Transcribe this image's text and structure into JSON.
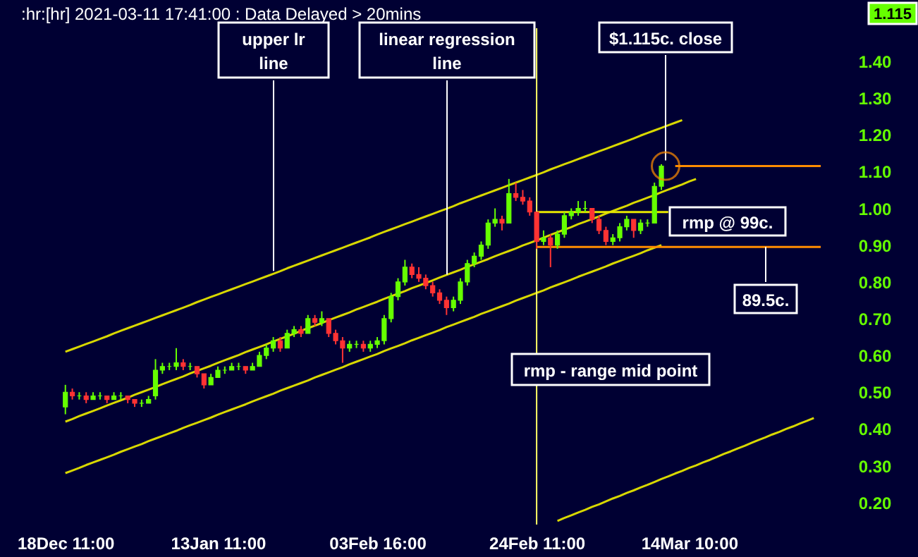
{
  "chart_data": {
    "type": "candlestick",
    "title": ":hr:[hr]  2021-03-11 17:41:00 : Data Delayed > 20mins",
    "categories": [
      "18Dec 11:00",
      null,
      null,
      null,
      null,
      null,
      null,
      null,
      null,
      null,
      null,
      null,
      null,
      null,
      null,
      null,
      null,
      null,
      null,
      null,
      null,
      null,
      "13Jan 11:00",
      null,
      null,
      null,
      null,
      null,
      null,
      null,
      null,
      null,
      null,
      null,
      null,
      null,
      null,
      null,
      null,
      null,
      null,
      null,
      null,
      null,
      null,
      "03Feb 16:00",
      null,
      null,
      null,
      null,
      null,
      null,
      null,
      null,
      null,
      null,
      null,
      null,
      null,
      null,
      null,
      null,
      null,
      null,
      null,
      null,
      null,
      null,
      "24Feb 11:00",
      null,
      null,
      null,
      null,
      null,
      null,
      null,
      null,
      null,
      null,
      null,
      null,
      null,
      null,
      null,
      null,
      null,
      null,
      null,
      null,
      null,
      "14Mar 10:00",
      null,
      null,
      null,
      null,
      null,
      null,
      null,
      null,
      null,
      null,
      null,
      null,
      null,
      null,
      null,
      null,
      null,
      null,
      null
    ],
    "ohlc": [
      [
        0.46,
        0.52,
        0.44,
        0.5
      ],
      [
        0.5,
        0.51,
        0.48,
        0.49
      ],
      [
        0.49,
        0.5,
        0.48,
        0.49
      ],
      [
        0.49,
        0.5,
        0.47,
        0.48
      ],
      [
        0.48,
        0.5,
        0.48,
        0.49
      ],
      [
        0.49,
        0.5,
        0.48,
        0.49
      ],
      [
        0.49,
        0.49,
        0.47,
        0.48
      ],
      [
        0.48,
        0.5,
        0.48,
        0.49
      ],
      [
        0.49,
        0.5,
        0.48,
        0.49
      ],
      [
        0.49,
        0.49,
        0.47,
        0.48
      ],
      [
        0.48,
        0.48,
        0.46,
        0.47
      ],
      [
        0.47,
        0.48,
        0.46,
        0.47
      ],
      [
        0.47,
        0.49,
        0.47,
        0.48
      ],
      [
        0.49,
        0.59,
        0.48,
        0.56
      ],
      [
        0.56,
        0.58,
        0.55,
        0.57
      ],
      [
        0.57,
        0.58,
        0.56,
        0.57
      ],
      [
        0.57,
        0.62,
        0.56,
        0.58
      ],
      [
        0.58,
        0.59,
        0.56,
        0.57
      ],
      [
        0.57,
        0.58,
        0.56,
        0.57
      ],
      [
        0.57,
        0.57,
        0.54,
        0.55
      ],
      [
        0.55,
        0.55,
        0.51,
        0.52
      ],
      [
        0.52,
        0.55,
        0.52,
        0.54
      ],
      [
        0.54,
        0.57,
        0.54,
        0.56
      ],
      [
        0.56,
        0.57,
        0.55,
        0.56
      ],
      [
        0.56,
        0.58,
        0.56,
        0.57
      ],
      [
        0.57,
        0.58,
        0.56,
        0.57
      ],
      [
        0.57,
        0.57,
        0.55,
        0.56
      ],
      [
        0.56,
        0.58,
        0.56,
        0.57
      ],
      [
        0.57,
        0.61,
        0.57,
        0.6
      ],
      [
        0.6,
        0.63,
        0.59,
        0.62
      ],
      [
        0.62,
        0.65,
        0.61,
        0.64
      ],
      [
        0.64,
        0.65,
        0.61,
        0.62
      ],
      [
        0.62,
        0.67,
        0.62,
        0.66
      ],
      [
        0.66,
        0.68,
        0.65,
        0.67
      ],
      [
        0.67,
        0.68,
        0.65,
        0.66
      ],
      [
        0.66,
        0.71,
        0.66,
        0.7
      ],
      [
        0.7,
        0.71,
        0.68,
        0.69
      ],
      [
        0.69,
        0.72,
        0.68,
        0.7
      ],
      [
        0.7,
        0.7,
        0.65,
        0.66
      ],
      [
        0.66,
        0.67,
        0.63,
        0.64
      ],
      [
        0.64,
        0.65,
        0.58,
        0.62
      ],
      [
        0.62,
        0.64,
        0.61,
        0.63
      ],
      [
        0.63,
        0.64,
        0.62,
        0.63
      ],
      [
        0.63,
        0.64,
        0.61,
        0.62
      ],
      [
        0.62,
        0.64,
        0.61,
        0.63
      ],
      [
        0.63,
        0.65,
        0.62,
        0.64
      ],
      [
        0.64,
        0.71,
        0.63,
        0.7
      ],
      [
        0.7,
        0.77,
        0.69,
        0.76
      ],
      [
        0.76,
        0.81,
        0.75,
        0.8
      ],
      [
        0.8,
        0.86,
        0.79,
        0.84
      ],
      [
        0.84,
        0.85,
        0.81,
        0.82
      ],
      [
        0.82,
        0.84,
        0.8,
        0.81
      ],
      [
        0.81,
        0.82,
        0.78,
        0.79
      ],
      [
        0.79,
        0.8,
        0.76,
        0.77
      ],
      [
        0.77,
        0.78,
        0.74,
        0.75
      ],
      [
        0.75,
        0.76,
        0.71,
        0.73
      ],
      [
        0.73,
        0.76,
        0.72,
        0.75
      ],
      [
        0.75,
        0.81,
        0.74,
        0.8
      ],
      [
        0.8,
        0.86,
        0.79,
        0.85
      ],
      [
        0.85,
        0.88,
        0.84,
        0.87
      ],
      [
        0.87,
        0.91,
        0.86,
        0.9
      ],
      [
        0.9,
        0.97,
        0.89,
        0.96
      ],
      [
        0.96,
        1.0,
        0.95,
        0.97
      ],
      [
        0.97,
        0.98,
        0.94,
        0.96
      ],
      [
        0.96,
        1.08,
        0.96,
        1.04
      ],
      [
        1.04,
        1.07,
        1.02,
        1.03
      ],
      [
        1.03,
        1.05,
        1.01,
        1.02
      ],
      [
        1.02,
        1.03,
        0.98,
        0.99
      ],
      [
        0.99,
        0.99,
        0.89,
        0.91
      ],
      [
        0.91,
        0.94,
        0.9,
        0.92
      ],
      [
        0.92,
        0.93,
        0.84,
        0.9
      ],
      [
        0.9,
        0.94,
        0.89,
        0.93
      ],
      [
        0.93,
        0.99,
        0.92,
        0.98
      ],
      [
        0.98,
        1.0,
        0.97,
        0.99
      ],
      [
        0.99,
        1.02,
        0.98,
        1.0
      ],
      [
        1.0,
        1.02,
        0.99,
        1.0
      ],
      [
        1.0,
        1.0,
        0.96,
        0.97
      ],
      [
        0.97,
        0.98,
        0.93,
        0.94
      ],
      [
        0.94,
        0.95,
        0.9,
        0.91
      ],
      [
        0.91,
        0.93,
        0.9,
        0.92
      ],
      [
        0.92,
        0.96,
        0.91,
        0.95
      ],
      [
        0.95,
        0.98,
        0.94,
        0.97
      ],
      [
        0.97,
        0.97,
        0.92,
        0.94
      ],
      [
        0.94,
        0.97,
        0.93,
        0.96
      ],
      [
        0.96,
        0.97,
        0.95,
        0.96
      ],
      [
        0.96,
        1.07,
        0.96,
        1.06
      ],
      [
        1.06,
        1.12,
        1.05,
        1.115
      ],
      null,
      null,
      null,
      null,
      null,
      null,
      null,
      null,
      null,
      null,
      null,
      null,
      null,
      null,
      null,
      null,
      null,
      null,
      null,
      null,
      null,
      null,
      null
    ],
    "colors": [
      "#66ff00",
      "#ff3333",
      "#66ff00",
      "#ff3333",
      "#66ff00",
      "#66ff00",
      "#ff3333",
      "#66ff00",
      "#66ff00",
      "#ff3333",
      "#ff3333",
      "#66ff00",
      "#66ff00",
      "#66ff00",
      "#66ff00",
      "#66ff00",
      "#66ff00",
      "#ff3333",
      "#66ff00",
      "#ff3333",
      "#ff3333",
      "#66ff00",
      "#66ff00",
      "#66ff00",
      "#66ff00",
      "#66ff00",
      "#ff3333",
      "#66ff00",
      "#66ff00",
      "#66ff00",
      "#66ff00",
      "#ff3333",
      "#66ff00",
      "#66ff00",
      "#ff3333",
      "#66ff00",
      "#ff3333",
      "#66ff00",
      "#ff3333",
      "#ff3333",
      "#ff3333",
      "#66ff00",
      "#66ff00",
      "#ff3333",
      "#66ff00",
      "#66ff00",
      "#66ff00",
      "#66ff00",
      "#66ff00",
      "#66ff00",
      "#ff3333",
      "#ff3333",
      "#ff3333",
      "#ff3333",
      "#ff3333",
      "#ff3333",
      "#66ff00",
      "#66ff00",
      "#66ff00",
      "#66ff00",
      "#66ff00",
      "#66ff00",
      "#66ff00",
      "#ff3333",
      "#66ff00",
      "#ff3333",
      "#ff3333",
      "#ff3333",
      "#ff3333",
      "#66ff00",
      "#ff3333",
      "#66ff00",
      "#66ff00",
      "#66ff00",
      "#66ff00",
      "#66ff00",
      "#ff3333",
      "#ff3333",
      "#ff3333",
      "#66ff00",
      "#66ff00",
      "#66ff00",
      "#ff3333",
      "#66ff00",
      "#66ff00",
      "#66ff00",
      "#66ff00",
      null,
      null,
      null,
      null,
      null,
      null,
      null,
      null,
      null,
      null,
      null,
      null,
      null,
      null,
      null,
      null,
      null,
      null,
      null,
      null,
      null,
      null,
      null
    ],
    "series": [
      {
        "type": "line",
        "color": "#d8d800",
        "values": [
          0.61,
          0.617,
          0.624,
          0.631,
          0.638,
          0.645,
          0.652,
          0.66,
          0.667,
          0.674,
          0.681,
          0.688,
          0.695,
          0.702,
          0.709,
          0.716,
          0.723,
          0.73,
          0.737,
          0.745,
          0.752,
          0.759,
          0.766,
          0.773,
          0.78,
          0.787,
          0.794,
          0.801,
          0.808,
          0.815,
          0.822,
          0.829,
          0.837,
          0.844,
          0.851,
          0.858,
          0.865,
          0.872,
          0.879,
          0.886,
          0.893,
          0.9,
          0.907,
          0.914,
          0.921,
          0.929,
          0.936,
          0.943,
          0.95,
          0.957,
          0.964,
          0.971,
          0.978,
          0.985,
          0.992,
          0.999,
          1.006,
          1.014,
          1.021,
          1.028,
          1.035,
          1.042,
          1.049,
          1.056,
          1.063,
          1.07,
          1.077,
          1.084,
          1.091,
          1.098,
          1.106,
          1.113,
          1.12,
          1.127,
          1.134,
          1.141,
          1.148,
          1.155,
          1.162,
          1.169,
          1.176,
          1.183,
          1.19,
          1.198,
          1.205,
          1.212,
          1.219,
          1.226,
          1.233,
          1.24,
          null,
          null,
          null,
          null,
          null,
          null,
          null,
          null,
          null,
          null,
          null,
          null,
          null,
          null,
          null,
          null,
          null,
          null,
          null,
          null
        ]
      },
      {
        "type": "line",
        "color": "#d8d800",
        "values": [
          0.42,
          0.427,
          0.435,
          0.442,
          0.449,
          0.456,
          0.464,
          0.471,
          0.478,
          0.485,
          0.493,
          0.5,
          0.507,
          0.514,
          0.522,
          0.529,
          0.536,
          0.543,
          0.551,
          0.558,
          0.565,
          0.572,
          0.58,
          0.587,
          0.594,
          0.601,
          0.609,
          0.616,
          0.623,
          0.63,
          0.638,
          0.645,
          0.652,
          0.659,
          0.667,
          0.674,
          0.681,
          0.688,
          0.696,
          0.703,
          0.71,
          0.717,
          0.725,
          0.732,
          0.739,
          0.746,
          0.754,
          0.761,
          0.768,
          0.775,
          0.783,
          0.79,
          0.797,
          0.804,
          0.812,
          0.819,
          0.826,
          0.833,
          0.841,
          0.848,
          0.855,
          0.862,
          0.87,
          0.877,
          0.884,
          0.891,
          0.899,
          0.906,
          0.913,
          0.92,
          0.928,
          0.935,
          0.942,
          0.949,
          0.957,
          0.964,
          0.971,
          0.978,
          0.986,
          0.993,
          1.0,
          1.007,
          1.015,
          1.022,
          1.029,
          1.036,
          1.044,
          1.051,
          1.058,
          1.065,
          1.073,
          1.08,
          null,
          null,
          null,
          null,
          null,
          null,
          null,
          null,
          null,
          null,
          null,
          null,
          null,
          null,
          null,
          null,
          null,
          null
        ]
      },
      {
        "type": "line",
        "color": "#d8d800",
        "values": [
          0.28,
          0.287,
          0.294,
          0.302,
          0.309,
          0.316,
          0.323,
          0.33,
          0.338,
          0.345,
          0.352,
          0.359,
          0.367,
          0.374,
          0.381,
          0.388,
          0.395,
          0.403,
          0.41,
          0.417,
          0.424,
          0.431,
          0.439,
          0.446,
          0.453,
          0.46,
          0.467,
          0.475,
          0.482,
          0.489,
          0.496,
          0.504,
          0.511,
          0.518,
          0.525,
          0.532,
          0.54,
          0.547,
          0.554,
          0.561,
          0.568,
          0.576,
          0.583,
          0.59,
          0.597,
          0.604,
          0.612,
          0.619,
          0.626,
          0.633,
          0.641,
          0.648,
          0.655,
          0.662,
          0.669,
          0.677,
          0.684,
          0.691,
          0.698,
          0.705,
          0.713,
          0.72,
          0.727,
          0.734,
          0.741,
          0.749,
          0.756,
          0.763,
          0.77,
          0.777,
          0.785,
          0.792,
          0.799,
          0.806,
          0.814,
          0.821,
          0.828,
          0.835,
          0.842,
          0.85,
          0.857,
          0.864,
          0.871,
          0.878,
          0.886,
          0.893,
          0.9,
          null,
          null,
          null,
          null,
          null,
          null,
          null,
          null,
          null,
          null,
          null,
          null,
          null,
          null,
          null,
          null,
          null,
          null,
          null,
          null,
          null,
          null,
          null
        ]
      },
      {
        "type": "line",
        "color": "#d8d800",
        "values": [
          null,
          null,
          null,
          null,
          null,
          null,
          null,
          null,
          null,
          null,
          null,
          null,
          null,
          null,
          null,
          null,
          null,
          null,
          null,
          null,
          null,
          null,
          null,
          null,
          null,
          null,
          null,
          null,
          null,
          null,
          null,
          null,
          null,
          null,
          null,
          null,
          null,
          null,
          null,
          null,
          null,
          null,
          null,
          null,
          null,
          null,
          null,
          null,
          null,
          null,
          null,
          null,
          null,
          null,
          null,
          null,
          null,
          null,
          null,
          null,
          null,
          null,
          null,
          null,
          null,
          null,
          null,
          null,
          null,
          null,
          null,
          0.15,
          0.158,
          0.165,
          0.173,
          0.18,
          0.188,
          0.195,
          0.203,
          0.211,
          0.218,
          0.226,
          0.233,
          0.241,
          0.248,
          0.256,
          0.264,
          0.271,
          0.279,
          0.286,
          0.294,
          0.301,
          0.309,
          0.316,
          0.324,
          0.332,
          0.339,
          0.347,
          0.354,
          0.362,
          0.37,
          0.377,
          0.385,
          0.392,
          0.4,
          0.407,
          0.415,
          0.422,
          0.43,
          null
        ]
      },
      {
        "type": "line",
        "color": "#e6e600",
        "values": [
          null,
          null,
          null,
          null,
          null,
          null,
          null,
          null,
          null,
          null,
          null,
          null,
          null,
          null,
          null,
          null,
          null,
          null,
          null,
          null,
          null,
          null,
          null,
          null,
          null,
          null,
          null,
          null,
          null,
          null,
          null,
          null,
          null,
          null,
          null,
          null,
          null,
          null,
          null,
          null,
          null,
          null,
          null,
          null,
          null,
          null,
          null,
          null,
          null,
          null,
          null,
          null,
          null,
          null,
          null,
          null,
          null,
          null,
          null,
          null,
          null,
          null,
          null,
          null,
          null,
          null,
          null,
          null,
          0.99,
          0.99,
          0.99,
          0.99,
          0.99,
          0.99,
          0.99,
          0.99,
          0.99,
          0.99,
          0.99,
          0.99,
          0.99,
          0.99,
          0.99,
          0.99,
          0.99,
          0.99,
          0.99,
          0.99,
          null,
          null,
          null,
          null,
          null,
          null,
          null,
          null,
          null,
          null,
          null,
          null,
          null,
          null,
          null,
          null,
          null,
          null,
          null,
          null,
          null,
          null
        ]
      },
      {
        "type": "line",
        "color": "#ff8c00",
        "values": [
          null,
          null,
          null,
          null,
          null,
          null,
          null,
          null,
          null,
          null,
          null,
          null,
          null,
          null,
          null,
          null,
          null,
          null,
          null,
          null,
          null,
          null,
          null,
          null,
          null,
          null,
          null,
          null,
          null,
          null,
          null,
          null,
          null,
          null,
          null,
          null,
          null,
          null,
          null,
          null,
          null,
          null,
          null,
          null,
          null,
          null,
          null,
          null,
          null,
          null,
          null,
          null,
          null,
          null,
          null,
          null,
          null,
          null,
          null,
          null,
          null,
          null,
          null,
          null,
          null,
          null,
          null,
          null,
          null,
          null,
          null,
          null,
          null,
          null,
          null,
          null,
          null,
          null,
          null,
          null,
          null,
          null,
          null,
          null,
          null,
          null,
          null,
          null,
          1.115,
          1.115,
          1.115,
          1.115,
          1.115,
          1.115,
          1.115,
          1.115,
          1.115,
          1.115,
          1.115,
          1.115,
          1.115,
          1.115,
          1.115,
          1.115,
          1.115,
          1.115,
          1.115,
          1.115,
          1.115,
          1.115
        ]
      },
      {
        "type": "line",
        "color": "#ff8c00",
        "values": [
          null,
          null,
          null,
          null,
          null,
          null,
          null,
          null,
          null,
          null,
          null,
          null,
          null,
          null,
          null,
          null,
          null,
          null,
          null,
          null,
          null,
          null,
          null,
          null,
          null,
          null,
          null,
          null,
          null,
          null,
          null,
          null,
          null,
          null,
          null,
          null,
          null,
          null,
          null,
          null,
          null,
          null,
          null,
          null,
          null,
          null,
          null,
          null,
          null,
          null,
          null,
          null,
          null,
          null,
          null,
          null,
          null,
          null,
          null,
          null,
          null,
          null,
          null,
          null,
          null,
          null,
          null,
          null,
          0.895,
          0.895,
          0.895,
          0.895,
          0.895,
          0.895,
          0.895,
          0.895,
          0.895,
          0.895,
          0.895,
          0.895,
          0.895,
          0.895,
          0.895,
          0.895,
          0.895,
          0.895,
          0.895,
          0.895,
          0.895,
          0.895,
          0.895,
          0.895,
          0.895,
          0.895,
          0.895,
          0.895,
          0.895,
          0.895,
          0.895,
          0.895,
          0.895,
          0.895,
          0.895,
          0.895,
          0.895,
          0.895,
          0.895,
          0.895,
          0.895,
          0.895
        ]
      }
    ],
    "ref_lines": [
      {
        "axis": "x",
        "value": "24Feb 11:00",
        "color": "#ffff66"
      }
    ],
    "annotations": [
      {
        "text": "upper lr\nline",
        "y": 0.83
      },
      {
        "text": "linear regression\nline",
        "y": 0.82
      },
      {
        "text": "$1.115c. close",
        "y": 1.115
      },
      "rmp @ 99c.",
      {
        "text": "89.5c.",
        "y": 0.895
      },
      "rmp - range mid point",
      "1.115"
    ],
    "ylim": [
      0.14,
      1.49
    ],
    "yticks": [
      {
        "value": 0.2,
        "label": "0.20"
      },
      {
        "value": 0.3,
        "label": "0.30"
      },
      {
        "value": 0.4,
        "label": "0.40"
      },
      {
        "value": 0.5,
        "label": "0.50"
      },
      {
        "value": 0.6,
        "label": "0.60"
      },
      {
        "value": 0.7,
        "label": "0.70"
      },
      {
        "value": 0.8,
        "label": "0.80"
      },
      {
        "value": 0.9,
        "label": "0.90"
      },
      {
        "value": 1.0,
        "label": "1.00"
      },
      {
        "value": 1.1,
        "label": "1.10"
      },
      {
        "value": 1.2,
        "label": "1.20"
      },
      {
        "value": 1.3,
        "label": "1.30"
      },
      {
        "value": 1.4,
        "label": "1.40"
      }
    ],
    "grid": false
  }
}
